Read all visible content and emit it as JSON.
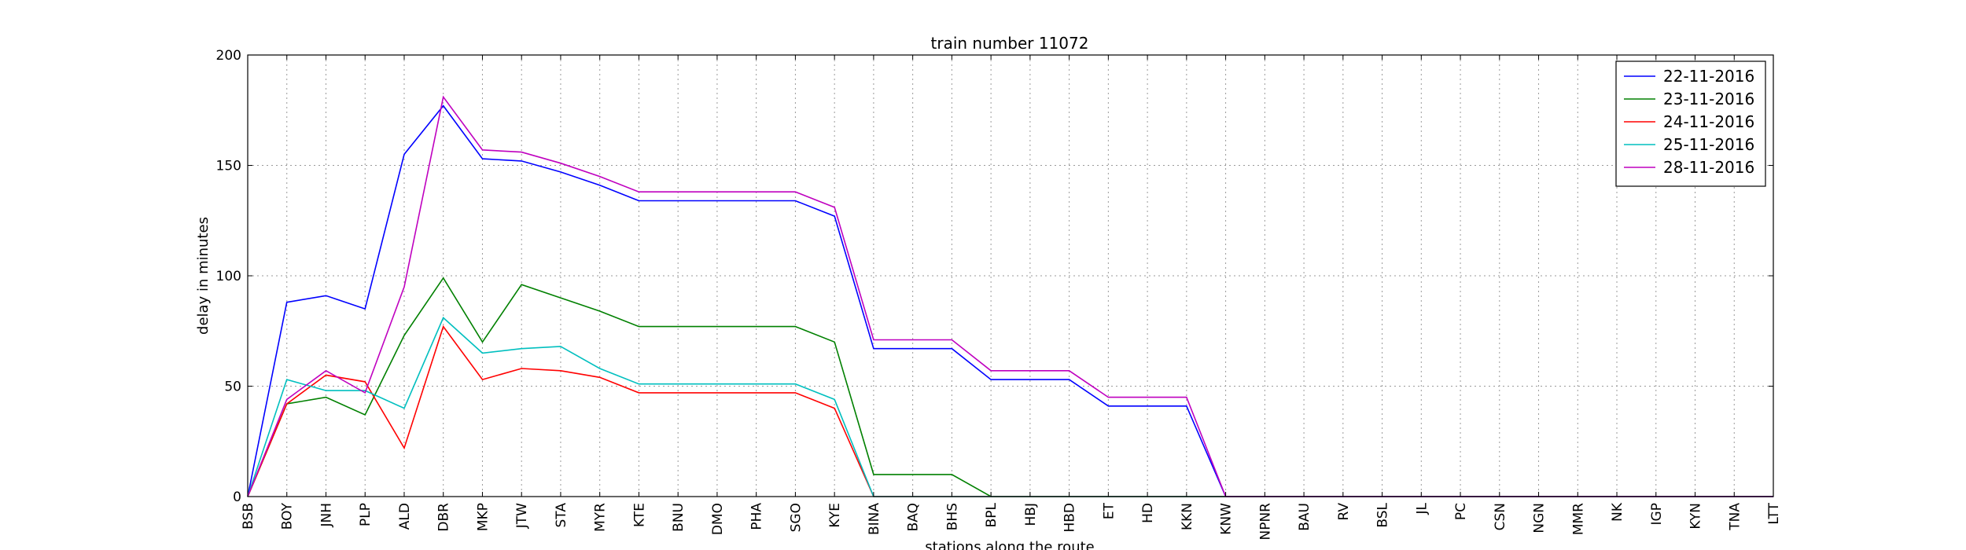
{
  "chart_data": {
    "type": "line",
    "title": "train number 11072",
    "xlabel": "stations along the route",
    "ylabel": "delay in minutes",
    "ylim": [
      0,
      200
    ],
    "yticks": [
      0,
      50,
      100,
      150,
      200
    ],
    "grid": true,
    "legend_position": "top-right",
    "categories": [
      "BSB",
      "BOY",
      "JNH",
      "PLP",
      "ALD",
      "DBR",
      "MKP",
      "JTW",
      "STA",
      "MYR",
      "KTE",
      "BNU",
      "DMO",
      "PHA",
      "SGO",
      "KYE",
      "BINA",
      "BAQ",
      "BHS",
      "BPL",
      "HBJ",
      "HBD",
      "ET",
      "HD",
      "KKN",
      "KNW",
      "NPNR",
      "BAU",
      "RV",
      "BSL",
      "JL",
      "PC",
      "CSN",
      "NGN",
      "MMR",
      "NK",
      "IGP",
      "KYN",
      "TNA",
      "LTT"
    ],
    "series": [
      {
        "name": "22-11-2016",
        "color": "#0000ff",
        "values": [
          0,
          88,
          91,
          85,
          155,
          177,
          153,
          152,
          147,
          141,
          134,
          134,
          134,
          134,
          134,
          127,
          67,
          67,
          67,
          53,
          53,
          53,
          41,
          41,
          41,
          0,
          0,
          0,
          0,
          0,
          0,
          0,
          0,
          0,
          0,
          0,
          0,
          0,
          0,
          0
        ]
      },
      {
        "name": "23-11-2016",
        "color": "#008000",
        "values": [
          0,
          42,
          45,
          37,
          73,
          99,
          70,
          96,
          90,
          84,
          77,
          77,
          77,
          77,
          77,
          70,
          10,
          10,
          10,
          0,
          0,
          0,
          0,
          0,
          0,
          0,
          0,
          0,
          0,
          0,
          0,
          0,
          0,
          0,
          0,
          0,
          0,
          0,
          0,
          0
        ]
      },
      {
        "name": "24-11-2016",
        "color": "#ff0000",
        "values": [
          0,
          42,
          55,
          52,
          22,
          77,
          53,
          58,
          57,
          54,
          47,
          47,
          47,
          47,
          47,
          40,
          0,
          0,
          0,
          0,
          0,
          0,
          0,
          0,
          0,
          0,
          0,
          0,
          0,
          0,
          0,
          0,
          0,
          0,
          0,
          0,
          0,
          0,
          0,
          0
        ]
      },
      {
        "name": "25-11-2016",
        "color": "#00bfbf",
        "values": [
          0,
          53,
          48,
          48,
          40,
          81,
          65,
          67,
          68,
          58,
          51,
          51,
          51,
          51,
          51,
          44,
          0,
          0,
          0,
          0,
          0,
          0,
          0,
          0,
          0,
          0,
          0,
          0,
          0,
          0,
          0,
          0,
          0,
          0,
          0,
          0,
          0,
          0,
          0,
          0
        ]
      },
      {
        "name": "28-11-2016",
        "color": "#bf00bf",
        "values": [
          0,
          44,
          57,
          47,
          95,
          181,
          157,
          156,
          151,
          145,
          138,
          138,
          138,
          138,
          138,
          131,
          71,
          71,
          71,
          57,
          57,
          57,
          45,
          45,
          45,
          0,
          0,
          0,
          0,
          0,
          0,
          0,
          0,
          0,
          0,
          0,
          0,
          0,
          0,
          0
        ]
      }
    ]
  }
}
